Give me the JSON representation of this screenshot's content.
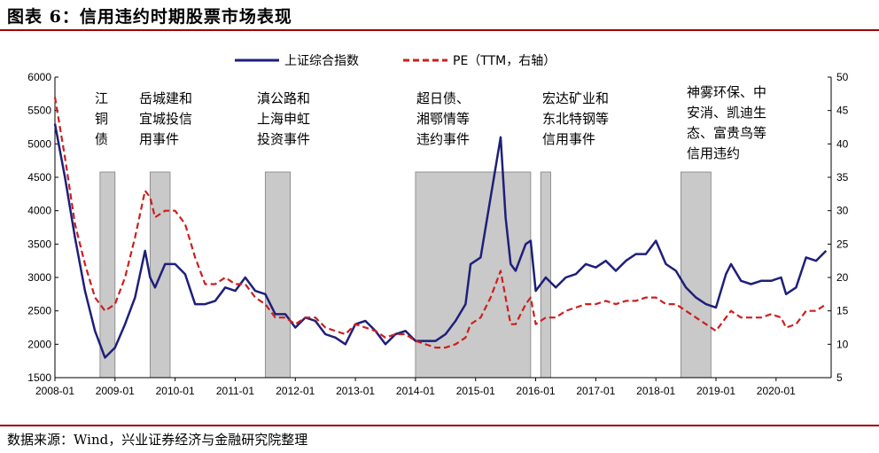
{
  "figure": {
    "title": "图表 6：信用违约时期股票市场表现",
    "source": "数据来源：Wind，兴业证券经济与金融研究院整理"
  },
  "colors": {
    "index": "#1f1f7a",
    "pe": "#cc1f1f",
    "shade": "#bfbfbf"
  },
  "chart_data": {
    "type": "line",
    "title": "",
    "legend_position": "top-center",
    "grid": false,
    "x_ticks": [
      "2008-01",
      "2009-01",
      "2010-01",
      "2011-01",
      "2012-01",
      "2013-01",
      "2014-01",
      "2015-01",
      "2016-01",
      "2017-01",
      "2018-01",
      "2019-01",
      "2020-01"
    ],
    "y_left": {
      "label": "",
      "min": 1500,
      "max": 6000,
      "ticks": [
        1500,
        2000,
        2500,
        3000,
        3500,
        4000,
        4500,
        5000,
        5500,
        6000
      ]
    },
    "y_right": {
      "label": "",
      "min": 5,
      "max": 50,
      "ticks": [
        5,
        10,
        15,
        20,
        25,
        30,
        35,
        40,
        45,
        50
      ]
    },
    "series": [
      {
        "name": "上证综合指数",
        "axis": "left",
        "style": "solid",
        "x": [
          "2008-01",
          "2008-03",
          "2008-05",
          "2008-07",
          "2008-09",
          "2008-11",
          "2009-01",
          "2009-03",
          "2009-05",
          "2009-07",
          "2009-08",
          "2009-09",
          "2009-11",
          "2010-01",
          "2010-03",
          "2010-05",
          "2010-07",
          "2010-09",
          "2010-11",
          "2011-01",
          "2011-03",
          "2011-05",
          "2011-07",
          "2011-09",
          "2011-11",
          "2012-01",
          "2012-03",
          "2012-05",
          "2012-07",
          "2012-09",
          "2012-11",
          "2013-01",
          "2013-03",
          "2013-05",
          "2013-07",
          "2013-09",
          "2013-11",
          "2014-01",
          "2014-03",
          "2014-05",
          "2014-07",
          "2014-09",
          "2014-11",
          "2014-12",
          "2015-02",
          "2015-04",
          "2015-06",
          "2015-07",
          "2015-08",
          "2015-09",
          "2015-11",
          "2015-12",
          "2016-01",
          "2016-03",
          "2016-05",
          "2016-07",
          "2016-09",
          "2016-11",
          "2017-01",
          "2017-03",
          "2017-05",
          "2017-07",
          "2017-09",
          "2017-11",
          "2018-01",
          "2018-03",
          "2018-05",
          "2018-07",
          "2018-09",
          "2018-11",
          "2019-01",
          "2019-03",
          "2019-04",
          "2019-06",
          "2019-08",
          "2019-10",
          "2019-12",
          "2020-02",
          "2020-03",
          "2020-05",
          "2020-07",
          "2020-09",
          "2020-11"
        ],
        "values": [
          5300,
          4500,
          3600,
          2800,
          2200,
          1800,
          1950,
          2300,
          2700,
          3400,
          3000,
          2850,
          3200,
          3200,
          3050,
          2600,
          2600,
          2650,
          2850,
          2800,
          3000,
          2800,
          2750,
          2450,
          2450,
          2250,
          2400,
          2350,
          2150,
          2100,
          2000,
          2300,
          2350,
          2200,
          2000,
          2150,
          2200,
          2050,
          2050,
          2050,
          2150,
          2350,
          2600,
          3200,
          3300,
          4200,
          5100,
          3900,
          3200,
          3100,
          3500,
          3550,
          2800,
          3000,
          2850,
          3000,
          3050,
          3200,
          3150,
          3250,
          3100,
          3250,
          3350,
          3350,
          3550,
          3200,
          3100,
          2850,
          2700,
          2600,
          2550,
          3050,
          3200,
          2950,
          2900,
          2950,
          2950,
          3000,
          2750,
          2850,
          3300,
          3250,
          3400
        ]
      },
      {
        "name": "PE（TTM，右轴）",
        "axis": "right",
        "style": "dashed",
        "x": [
          "2008-01",
          "2008-03",
          "2008-05",
          "2008-07",
          "2008-09",
          "2008-11",
          "2009-01",
          "2009-03",
          "2009-05",
          "2009-07",
          "2009-08",
          "2009-09",
          "2009-11",
          "2010-01",
          "2010-03",
          "2010-05",
          "2010-07",
          "2010-09",
          "2010-11",
          "2011-01",
          "2011-03",
          "2011-05",
          "2011-07",
          "2011-09",
          "2011-11",
          "2012-01",
          "2012-03",
          "2012-05",
          "2012-07",
          "2012-09",
          "2012-11",
          "2013-01",
          "2013-03",
          "2013-05",
          "2013-07",
          "2013-09",
          "2013-11",
          "2014-01",
          "2014-03",
          "2014-05",
          "2014-07",
          "2014-09",
          "2014-11",
          "2014-12",
          "2015-02",
          "2015-04",
          "2015-06",
          "2015-07",
          "2015-08",
          "2015-09",
          "2015-11",
          "2015-12",
          "2016-01",
          "2016-03",
          "2016-05",
          "2016-07",
          "2016-09",
          "2016-11",
          "2017-01",
          "2017-03",
          "2017-05",
          "2017-07",
          "2017-09",
          "2017-11",
          "2018-01",
          "2018-03",
          "2018-05",
          "2018-07",
          "2018-09",
          "2018-11",
          "2019-01",
          "2019-03",
          "2019-04",
          "2019-06",
          "2019-08",
          "2019-10",
          "2019-12",
          "2020-02",
          "2020-03",
          "2020-05",
          "2020-07",
          "2020-09",
          "2020-11"
        ],
        "values": [
          47,
          38,
          28,
          22,
          17,
          15,
          16,
          20,
          26,
          33,
          32,
          29,
          30,
          30,
          28,
          23,
          19,
          19,
          20,
          19,
          19,
          17,
          16,
          14,
          14,
          13,
          14,
          14,
          12.5,
          12,
          11.5,
          13,
          12.5,
          12,
          11,
          11.5,
          11.5,
          10.5,
          10,
          9.5,
          9.5,
          10,
          11,
          13,
          14,
          17,
          21,
          17,
          13,
          13,
          16,
          17,
          13,
          14,
          14,
          15,
          15.5,
          16,
          16,
          16.5,
          16,
          16.5,
          16.5,
          17,
          17,
          16,
          16,
          15,
          14,
          13,
          12,
          14,
          15,
          14,
          14,
          14,
          14.5,
          14,
          12.5,
          13,
          15,
          15,
          16
        ]
      }
    ],
    "shaded_events": [
      {
        "start": "2008-10",
        "end": "2009-01",
        "label_lines": [
          "江",
          "铜",
          "债"
        ]
      },
      {
        "start": "2009-08",
        "end": "2009-12",
        "label_lines": [
          "岳城建和",
          "宜城投信",
          "用事件"
        ]
      },
      {
        "start": "2011-07",
        "end": "2011-12",
        "label_lines": [
          "滇公路和",
          "上海申虹",
          "投资事件"
        ]
      },
      {
        "start": "2014-01",
        "end": "2015-12",
        "label_lines": [
          "超日债、",
          "湘鄂情等",
          "违约事件"
        ]
      },
      {
        "start": "2016-02",
        "end": "2016-04",
        "label_lines": [
          "宏达矿业和",
          "东北特钢等",
          "信用事件"
        ]
      },
      {
        "start": "2018-06",
        "end": "2018-12",
        "label_lines": [
          "神雾环保、中",
          "安消、凯迪生",
          "态、富贵鸟等",
          "信用违约"
        ]
      }
    ]
  }
}
